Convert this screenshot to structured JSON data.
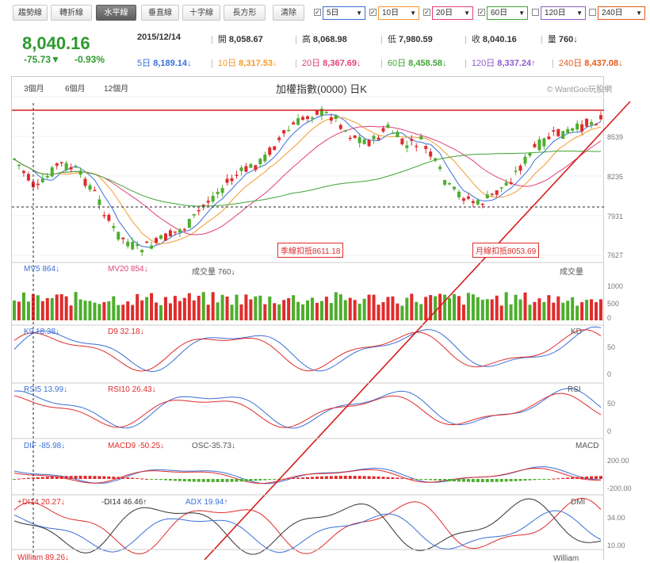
{
  "toolbar": {
    "tools": [
      "趨勢線",
      "轉折線",
      "水平線",
      "垂直線",
      "十字線",
      "長方形"
    ],
    "active_tool": "水平線",
    "clear_label": "清除",
    "ma_selectors": [
      {
        "label": "5日",
        "checked": true,
        "color": "#3a6fd8"
      },
      {
        "label": "10日",
        "checked": true,
        "color": "#f39a2c"
      },
      {
        "label": "20日",
        "checked": true,
        "color": "#e0407a"
      },
      {
        "label": "60日",
        "checked": true,
        "color": "#41a335"
      },
      {
        "label": "120日",
        "checked": false,
        "color": "#8c5cc7"
      },
      {
        "label": "240日",
        "checked": false,
        "color": "#e05a1a"
      }
    ]
  },
  "quote": {
    "price": "8,040.16",
    "change": "-75.73▼",
    "change_pct": "-0.93%",
    "date": "2015/12/14",
    "open_label": "開",
    "open": "8,058.67",
    "high_label": "高",
    "high": "8,068.98",
    "low_label": "低",
    "low": "7,980.59",
    "close_label": "收",
    "close": "8,040.16",
    "volume_label": "量",
    "volume": "760↓",
    "ma": [
      {
        "label": "5日",
        "value": "8,189.14↓",
        "color": "#3a6fd8"
      },
      {
        "label": "10日",
        "value": "8,317.53↓",
        "color": "#f39a2c"
      },
      {
        "label": "20日",
        "value": "8,367.69↓",
        "color": "#e0407a"
      },
      {
        "label": "60日",
        "value": "8,458.58↓",
        "color": "#41a335"
      },
      {
        "label": "120日",
        "value": "8,337.24↑",
        "color": "#8c5cc7"
      },
      {
        "label": "240日",
        "value": "8,437.08↓",
        "color": "#e05a1a"
      }
    ]
  },
  "chart": {
    "periods": [
      "3個月",
      "6個月",
      "12個月"
    ],
    "title": "加權指數(0000) 日K",
    "watermark": "© WantGoo玩股網",
    "price_axis": [
      "8539",
      "8235",
      "7931",
      "7627"
    ],
    "annotation_quarter": "季線扣抵8611.18",
    "annotation_month": "月線扣抵8053.69",
    "horizontal_line_price": 8780
  },
  "panels": {
    "volume": {
      "mv5": "MV5 864↓",
      "mv20": "MV20 854↓",
      "vol": "成交量 760↓",
      "name": "成交量",
      "axis": [
        "1000",
        "500",
        "0"
      ]
    },
    "kd": {
      "k": "K9 18.38↓",
      "d": "D9 32.18↓",
      "name": "KD",
      "axis": [
        "50",
        "0"
      ]
    },
    "rsi": {
      "rsi5": "RSI5 13.99↓",
      "rsi10": "RSI10 26.43↓",
      "name": "RSI",
      "axis": [
        "50",
        "0"
      ]
    },
    "macd": {
      "dif": "DIF -85.98↓",
      "macd9": "MACD9 -50.25↓",
      "osc": "OSC-35.73↓",
      "name": "MACD",
      "axis": [
        "200.00",
        "-200.00"
      ]
    },
    "dmi": {
      "pdi": "+DI14 20.27↓",
      "mdi": "-DI14 46.46↑",
      "adx": "ADX 19.94↑",
      "name": "DMI",
      "axis": [
        "34.00",
        "10.00"
      ]
    },
    "william": {
      "name": "William",
      "value": "William 89.26↓"
    }
  },
  "colors": {
    "up": "#e02b2b",
    "down": "#4cae2c",
    "ma5": "#3a6fd8",
    "ma10": "#f39a2c",
    "ma20": "#e0407a",
    "ma60": "#41a335"
  }
}
